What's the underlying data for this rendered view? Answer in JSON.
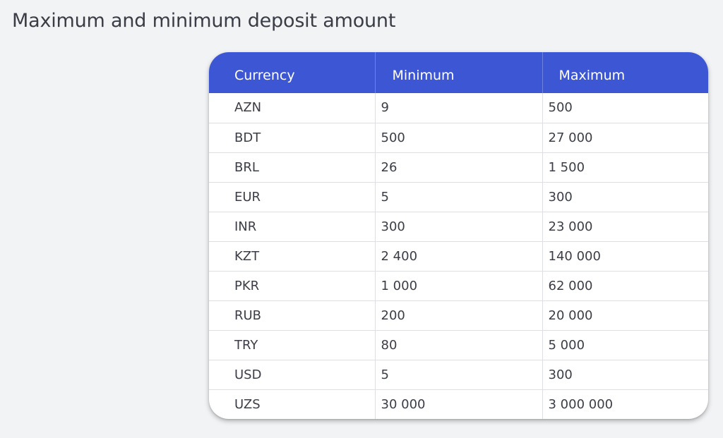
{
  "page": {
    "title": "Maximum and minimum deposit amount"
  },
  "table": {
    "header": {
      "currency": "Currency",
      "minimum": "Minimum",
      "maximum": "Maximum"
    },
    "rows": [
      {
        "currency": "AZN",
        "minimum": "9",
        "maximum": "500"
      },
      {
        "currency": "BDT",
        "minimum": "500",
        "maximum": "27 000"
      },
      {
        "currency": "BRL",
        "minimum": "26",
        "maximum": "1 500"
      },
      {
        "currency": "EUR",
        "minimum": "5",
        "maximum": "300"
      },
      {
        "currency": "INR",
        "minimum": "300",
        "maximum": "23 000"
      },
      {
        "currency": "KZT",
        "minimum": "2 400",
        "maximum": "140 000"
      },
      {
        "currency": "PKR",
        "minimum": "1 000",
        "maximum": "62 000"
      },
      {
        "currency": "RUB",
        "minimum": "200",
        "maximum": "20 000"
      },
      {
        "currency": "TRY",
        "minimum": "80",
        "maximum": "5 000"
      },
      {
        "currency": "USD",
        "minimum": "5",
        "maximum": "300"
      },
      {
        "currency": "UZS",
        "minimum": "30 000",
        "maximum": "3 000 000"
      }
    ]
  },
  "colors": {
    "header_background": "#3d57d4",
    "page_background": "#f2f3f5",
    "text": "#3b3d47"
  }
}
